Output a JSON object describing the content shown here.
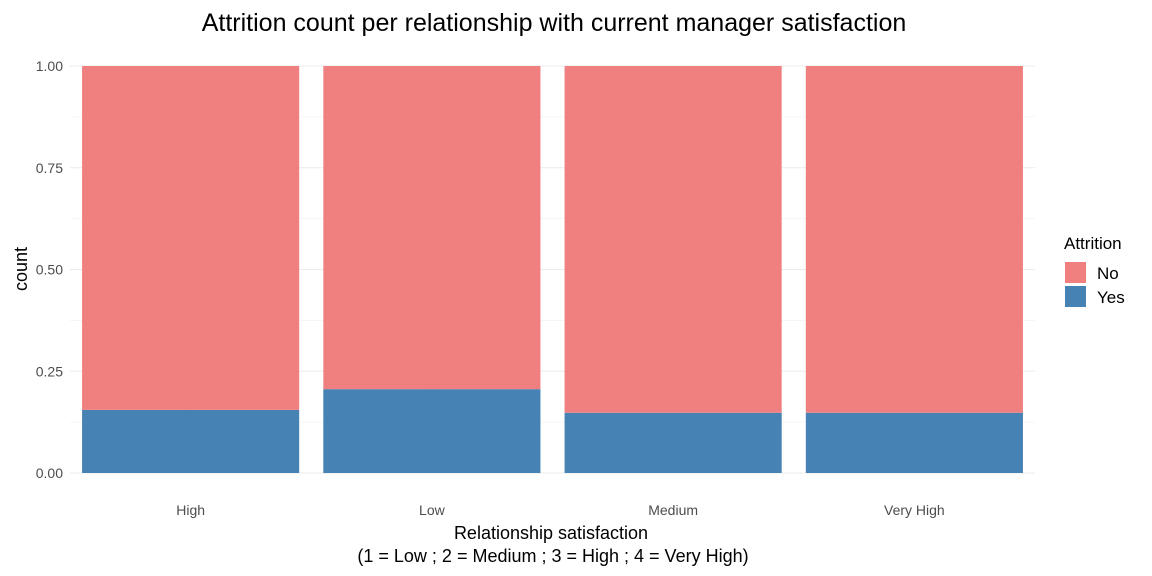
{
  "chart_data": {
    "type": "bar",
    "stacked": true,
    "position": "fill",
    "title": "Attrition count per relationship with current manager satisfaction",
    "xlabel": "Relationship satisfaction",
    "xlabel_line2": "(1 = Low ; 2 = Medium ; 3 = High ; 4 = Very High)",
    "ylabel": "count",
    "categories": [
      "High",
      "Low",
      "Medium",
      "Very High"
    ],
    "series": [
      {
        "name": "No",
        "color": "#f08080",
        "values": [
          0.845,
          0.794,
          0.852,
          0.852
        ]
      },
      {
        "name": "Yes",
        "color": "#4682b4",
        "values": [
          0.155,
          0.206,
          0.148,
          0.148
        ]
      }
    ],
    "ylim": [
      0,
      1
    ],
    "yticks": [
      "0.00",
      "0.25",
      "0.50",
      "0.75",
      "1.00"
    ],
    "grid": true,
    "legend": {
      "title": "Attrition",
      "position": "right"
    }
  }
}
